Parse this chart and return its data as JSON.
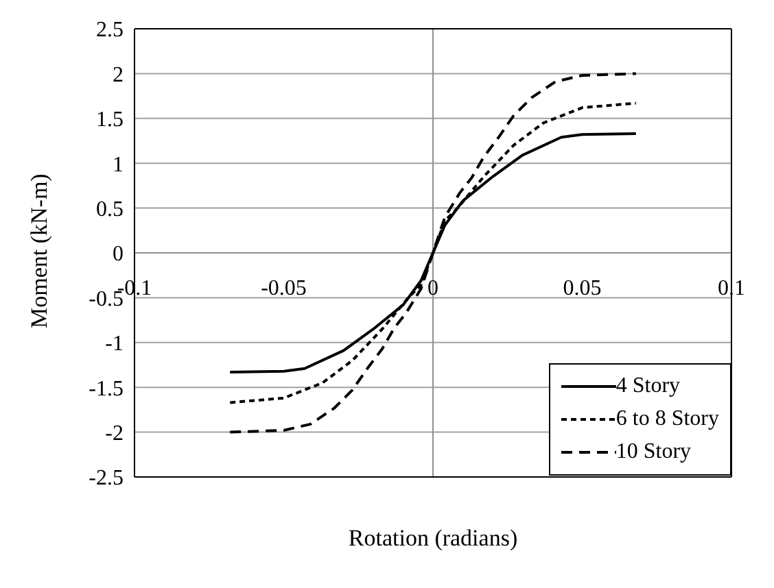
{
  "chart_data": {
    "type": "line",
    "xlabel": "Rotation (radians)",
    "ylabel": "Moment (kN-m)",
    "xlim": [
      -0.1,
      0.1
    ],
    "xticks": [
      -0.1,
      -0.05,
      0,
      0.05,
      0.1
    ],
    "ylim": [
      -2.5,
      2.5
    ],
    "yticks": [
      -2.5,
      -2,
      -1.5,
      -1,
      -0.5,
      0,
      0.5,
      1,
      1.5,
      2,
      2.5
    ],
    "grid": "y",
    "legend": "bottom right",
    "marker": "none",
    "series": [
      {
        "name": "4 Story",
        "color": "#000000",
        "line_style": "solid",
        "x": [
          -0.068,
          -0.05,
          -0.043,
          -0.03,
          -0.02,
          -0.01,
          -0.004,
          0,
          0.004,
          0.01,
          0.02,
          0.03,
          0.043,
          0.05,
          0.068
        ],
        "values": [
          -1.33,
          -1.32,
          -1.29,
          -1.09,
          -0.85,
          -0.58,
          -0.31,
          0,
          0.31,
          0.58,
          0.85,
          1.09,
          1.29,
          1.32,
          1.33
        ]
      },
      {
        "name": "6 to 8 Story",
        "color": "#000000",
        "line_style": "dotted",
        "x": [
          -0.068,
          -0.05,
          -0.037,
          -0.027,
          -0.017,
          -0.008,
          -0.004,
          0,
          0.004,
          0.008,
          0.017,
          0.027,
          0.037,
          0.05,
          0.068
        ],
        "values": [
          -1.67,
          -1.62,
          -1.45,
          -1.2,
          -0.85,
          -0.49,
          -0.36,
          0,
          0.36,
          0.49,
          0.85,
          1.2,
          1.45,
          1.62,
          1.67
        ]
      },
      {
        "name": "10 Story",
        "color": "#000000",
        "line_style": "dashed",
        "x": [
          -0.068,
          -0.05,
          -0.041,
          -0.033,
          -0.027,
          -0.022,
          -0.017,
          -0.013,
          -0.009,
          -0.004,
          0,
          0.004,
          0.009,
          0.013,
          0.017,
          0.022,
          0.027,
          0.033,
          0.041,
          0.05,
          0.068
        ],
        "values": [
          -2,
          -1.98,
          -1.91,
          -1.73,
          -1.53,
          -1.29,
          -1.07,
          -0.84,
          -0.67,
          -0.4,
          0,
          0.4,
          0.67,
          0.84,
          1.07,
          1.29,
          1.53,
          1.73,
          1.91,
          1.98,
          2
        ]
      }
    ]
  }
}
